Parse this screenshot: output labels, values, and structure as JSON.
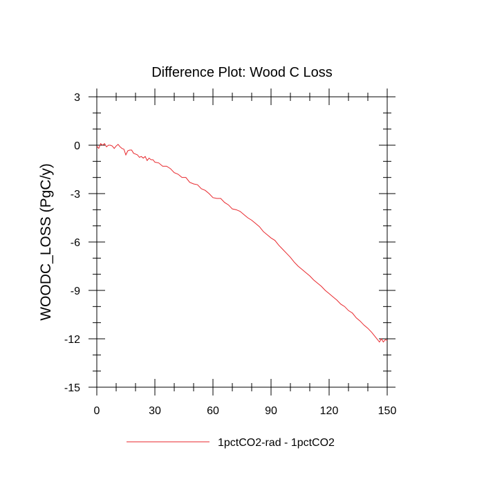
{
  "chart_data": {
    "type": "line",
    "title": "Difference Plot: Wood C Loss",
    "xlabel": "",
    "ylabel": "WOODC_LOSS  (PgC/y)",
    "xlim": [
      0,
      150
    ],
    "ylim": [
      -15,
      3
    ],
    "xticks": [
      "0",
      "30",
      "60",
      "90",
      "120",
      "150"
    ],
    "yticks": [
      "3",
      "0",
      "-3",
      "-6",
      "-9",
      "-12",
      "-15"
    ],
    "grid": false,
    "legend_position": "bottom",
    "series": [
      {
        "name": "1pctCO2-rad - 1pctCO2",
        "color": "#e8262b",
        "x": [
          0,
          1,
          2,
          3,
          4,
          5,
          6,
          7,
          8,
          9,
          10,
          11,
          12,
          13,
          14,
          15,
          16,
          17,
          18,
          19,
          20,
          21,
          22,
          23,
          24,
          25,
          26,
          27,
          28,
          29,
          30,
          32,
          34,
          36,
          38,
          40,
          42,
          44,
          46,
          48,
          50,
          52,
          54,
          56,
          58,
          60,
          62,
          64,
          66,
          68,
          70,
          72,
          74,
          76,
          78,
          80,
          82,
          84,
          86,
          88,
          90,
          92,
          94,
          96,
          98,
          100,
          102,
          104,
          106,
          108,
          110,
          112,
          114,
          116,
          118,
          120,
          122,
          124,
          126,
          128,
          130,
          132,
          134,
          136,
          138,
          140,
          142,
          144,
          146,
          147,
          148,
          149,
          150
        ],
        "y": [
          -0.05,
          -0.2,
          0.1,
          0.0,
          0.1,
          -0.1,
          0.0,
          0.0,
          -0.05,
          -0.2,
          -0.05,
          0.05,
          -0.1,
          -0.2,
          -0.25,
          -0.6,
          -0.35,
          -0.3,
          -0.3,
          -0.5,
          -0.55,
          -0.6,
          -0.75,
          -0.7,
          -0.8,
          -0.7,
          -0.95,
          -0.8,
          -0.9,
          -0.9,
          -1.05,
          -1.1,
          -1.3,
          -1.3,
          -1.45,
          -1.7,
          -1.8,
          -2.0,
          -2.0,
          -2.3,
          -2.4,
          -2.45,
          -2.7,
          -2.8,
          -3.0,
          -3.25,
          -3.3,
          -3.3,
          -3.55,
          -3.7,
          -3.95,
          -4.0,
          -4.1,
          -4.3,
          -4.5,
          -4.65,
          -4.85,
          -5.05,
          -5.35,
          -5.55,
          -5.75,
          -5.9,
          -6.2,
          -6.45,
          -6.7,
          -6.95,
          -7.25,
          -7.5,
          -7.7,
          -7.9,
          -8.1,
          -8.35,
          -8.55,
          -8.75,
          -9.0,
          -9.2,
          -9.4,
          -9.6,
          -9.85,
          -10.0,
          -10.25,
          -10.4,
          -10.7,
          -10.9,
          -11.15,
          -11.35,
          -11.6,
          -11.9,
          -12.2,
          -12.0,
          -12.2,
          -12.05,
          -12.1
        ]
      }
    ]
  }
}
